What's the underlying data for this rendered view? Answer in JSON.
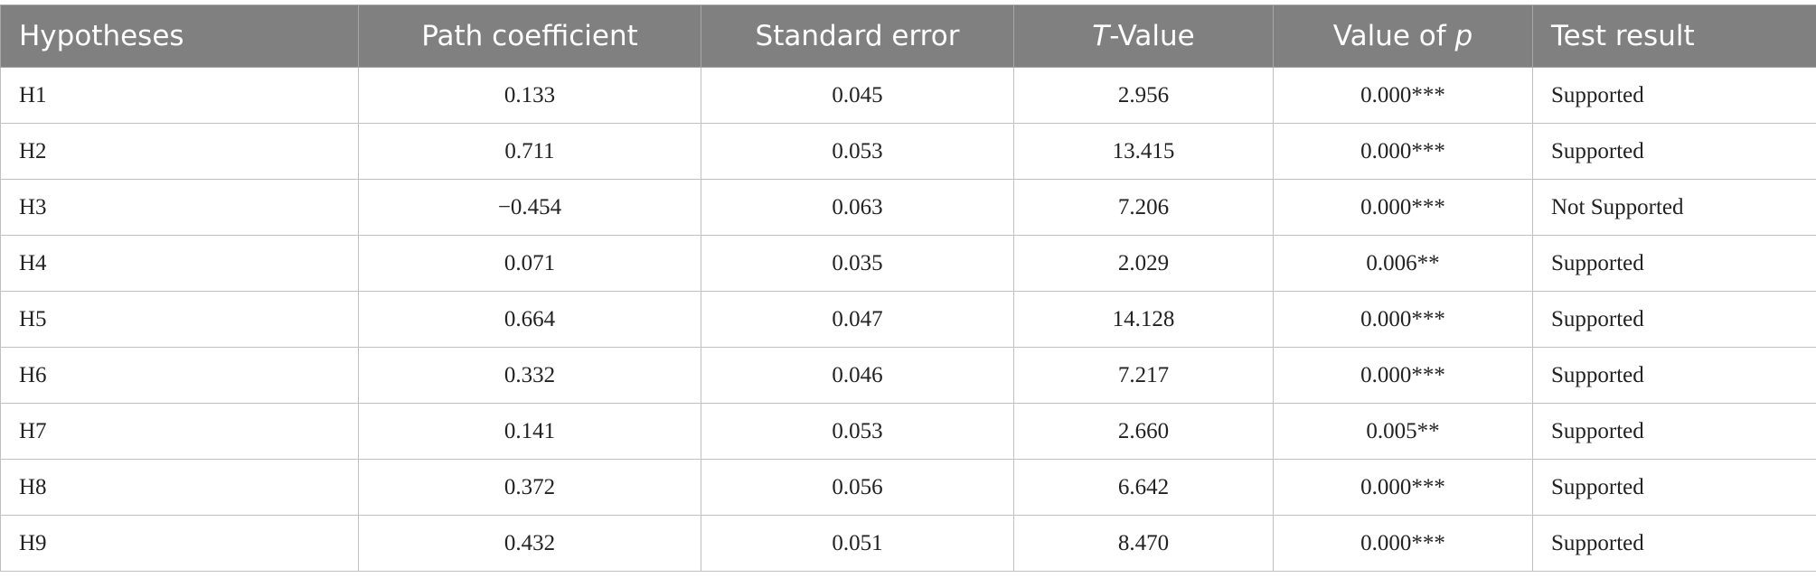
{
  "table": {
    "header": [
      [
        {
          "text": "Hypotheses"
        }
      ],
      [
        {
          "text": "Path coefficient"
        }
      ],
      [
        {
          "text": "Standard error"
        }
      ],
      [
        {
          "text": "T",
          "italic": true
        },
        {
          "text": "-Value"
        }
      ],
      [
        {
          "text": "Value of "
        },
        {
          "text": "p",
          "italic": true
        }
      ],
      [
        {
          "text": "Test result"
        }
      ]
    ],
    "rows": [
      [
        "H1",
        "0.133",
        "0.045",
        "2.956",
        "0.000***",
        "Supported"
      ],
      [
        "H2",
        "0.711",
        "0.053",
        "13.415",
        "0.000***",
        "Supported"
      ],
      [
        "H3",
        "−0.454",
        "0.063",
        "7.206",
        "0.000***",
        "Not Supported"
      ],
      [
        "H4",
        "0.071",
        "0.035",
        "2.029",
        "0.006**",
        "Supported"
      ],
      [
        "H5",
        "0.664",
        "0.047",
        "14.128",
        "0.000***",
        "Supported"
      ],
      [
        "H6",
        "0.332",
        "0.046",
        "7.217",
        "0.000***",
        "Supported"
      ],
      [
        "H7",
        "0.141",
        "0.053",
        "2.660",
        "0.005**",
        "Supported"
      ],
      [
        "H8",
        "0.372",
        "0.056",
        "6.642",
        "0.000***",
        "Supported"
      ],
      [
        "H9",
        "0.432",
        "0.051",
        "8.470",
        "0.000***",
        "Supported"
      ]
    ]
  }
}
